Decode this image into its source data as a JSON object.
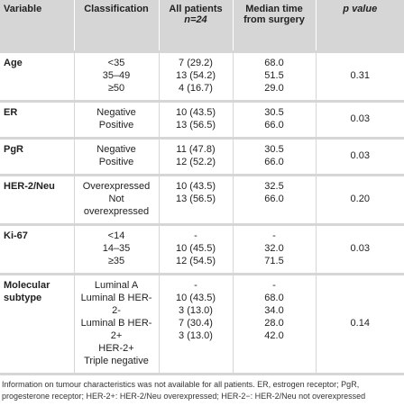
{
  "header": {
    "variable": "Variable",
    "classification": "Classification",
    "all_patients": "All patients",
    "n": "n=24",
    "median": "Median time from surgery",
    "p_value": "p value"
  },
  "groups": [
    {
      "variable": "Age",
      "classifications": [
        "<35",
        "35–49",
        "≥50"
      ],
      "patients": [
        "7 (29.2)",
        "13 (54.2)",
        "4 (16.7)"
      ],
      "median": [
        "68.0",
        "51.5",
        "29.0"
      ],
      "p": "0.31"
    },
    {
      "variable": "ER",
      "classifications": [
        "Negative",
        "Positive"
      ],
      "patients": [
        "10 (43.5)",
        "13 (56.5)"
      ],
      "median": [
        "30.5",
        "66.0"
      ],
      "p": "0.03"
    },
    {
      "variable": "PgR",
      "classifications": [
        "Negative",
        "Positive"
      ],
      "patients": [
        "11 (47.8)",
        "12 (52.2)"
      ],
      "median": [
        "30.5",
        "66.0"
      ],
      "p": "0.03"
    },
    {
      "variable": "HER-2/Neu",
      "classifications": [
        "Overexpressed",
        "Not overexpressed"
      ],
      "patients": [
        "10 (43.5)",
        "13 (56.5)"
      ],
      "median": [
        "32.5",
        "66.0"
      ],
      "p": "0.20"
    },
    {
      "variable": "Ki-67",
      "classifications": [
        "<14",
        "14–35",
        "≥35"
      ],
      "patients": [
        "-",
        "10 (45.5)",
        "12 (54.5)"
      ],
      "median": [
        "-",
        "32.0",
        "71.5"
      ],
      "p": "0.03"
    },
    {
      "variable": "Molecular subtype",
      "classifications": [
        "Luminal A",
        "Luminal B HER-2-",
        "Luminal B HER-2+",
        "HER-2+",
        "Triple negative"
      ],
      "patients": [
        "-",
        "10 (43.5)",
        "3 (13.0)",
        "7 (30.4)",
        "3 (13.0)"
      ],
      "median": [
        "-",
        "68.0",
        "34.0",
        "28.0",
        "42.0"
      ],
      "p": "0.14"
    }
  ],
  "footnote": "Information on tumour characteristics was not available for all patients. ER, estrogen receptor; PgR, progesterone receptor; HER-2+: HER-2/Neu overexpressed; HER-2−: HER-2/Neu not overexpressed"
}
